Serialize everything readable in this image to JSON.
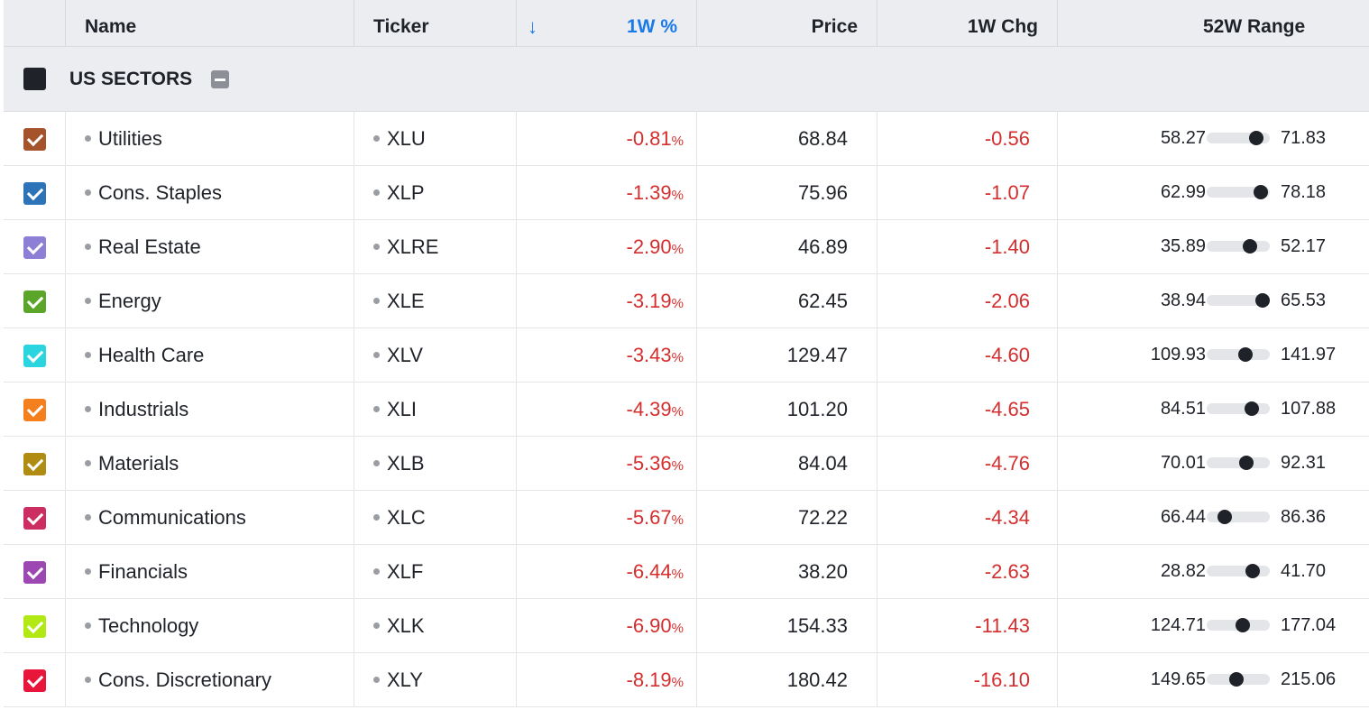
{
  "header": {
    "name": "Name",
    "ticker": "Ticker",
    "sort_icon": "↓",
    "week_pct": "1W %",
    "price": "Price",
    "week_chg": "1W Chg",
    "range": "52W Range"
  },
  "group": {
    "title": "US SECTORS"
  },
  "rows": [
    {
      "name": "Utilities",
      "ticker": "XLU",
      "pct": "-0.81",
      "pct_sign": "%",
      "price": "68.84",
      "chg": "-0.56",
      "low": "58.27",
      "high": "71.83",
      "pos": 0.78,
      "color": "#a4532a"
    },
    {
      "name": "Cons. Staples",
      "ticker": "XLP",
      "pct": "-1.39",
      "pct_sign": "%",
      "price": "75.96",
      "chg": "-1.07",
      "low": "62.99",
      "high": "78.18",
      "pos": 0.85,
      "color": "#2c74b7"
    },
    {
      "name": "Real Estate",
      "ticker": "XLRE",
      "pct": "-2.90",
      "pct_sign": "%",
      "price": "46.89",
      "chg": "-1.40",
      "low": "35.89",
      "high": "52.17",
      "pos": 0.68,
      "color": "#8d7fd5"
    },
    {
      "name": "Energy",
      "ticker": "XLE",
      "pct": "-3.19",
      "pct_sign": "%",
      "price": "62.45",
      "chg": "-2.06",
      "low": "38.94",
      "high": "65.53",
      "pos": 0.88,
      "color": "#5aa52a"
    },
    {
      "name": "Health Care",
      "ticker": "XLV",
      "pct": "-3.43",
      "pct_sign": "%",
      "price": "129.47",
      "chg": "-4.60",
      "low": "109.93",
      "high": "141.97",
      "pos": 0.61,
      "color": "#2bd5e0"
    },
    {
      "name": "Industrials",
      "ticker": "XLI",
      "pct": "-4.39",
      "pct_sign": "%",
      "price": "101.20",
      "chg": "-4.65",
      "low": "84.51",
      "high": "107.88",
      "pos": 0.71,
      "color": "#f57f1c"
    },
    {
      "name": "Materials",
      "ticker": "XLB",
      "pct": "-5.36",
      "pct_sign": "%",
      "price": "84.04",
      "chg": "-4.76",
      "low": "70.01",
      "high": "92.31",
      "pos": 0.63,
      "color": "#b08c12"
    },
    {
      "name": "Communications",
      "ticker": "XLC",
      "pct": "-5.67",
      "pct_sign": "%",
      "price": "72.22",
      "chg": "-4.34",
      "low": "66.44",
      "high": "86.36",
      "pos": 0.29,
      "color": "#cc2e62"
    },
    {
      "name": "Financials",
      "ticker": "XLF",
      "pct": "-6.44",
      "pct_sign": "%",
      "price": "38.20",
      "chg": "-2.63",
      "low": "28.82",
      "high": "41.70",
      "pos": 0.73,
      "color": "#9c47b2"
    },
    {
      "name": "Technology",
      "ticker": "XLK",
      "pct": "-6.90",
      "pct_sign": "%",
      "price": "154.33",
      "chg": "-11.43",
      "low": "124.71",
      "high": "177.04",
      "pos": 0.57,
      "color": "#b2e813"
    },
    {
      "name": "Cons. Discretionary",
      "ticker": "XLY",
      "pct": "-8.19",
      "pct_sign": "%",
      "price": "180.42",
      "chg": "-16.10",
      "low": "149.65",
      "high": "215.06",
      "pos": 0.47,
      "color": "#e8163a"
    }
  ]
}
